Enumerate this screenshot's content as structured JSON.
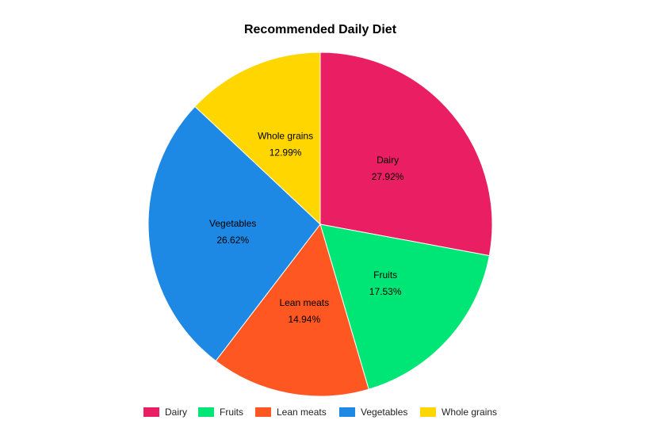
{
  "chart_data": {
    "type": "pie",
    "title": "Recommended Daily Diet",
    "start_angle": "top, clockwise",
    "legend_placement": "bottom",
    "categories": [
      "Dairy",
      "Fruits",
      "Lean meats",
      "Vegetables",
      "Whole grains"
    ],
    "values": [
      27.92,
      17.53,
      14.94,
      26.62,
      12.99
    ],
    "value_labels": [
      "27.92%",
      "17.53%",
      "14.94%",
      "26.62%",
      "12.99%"
    ],
    "colors": [
      "#E91E63",
      "#00E676",
      "#FF5722",
      "#1E88E5",
      "#FFD600"
    ]
  }
}
